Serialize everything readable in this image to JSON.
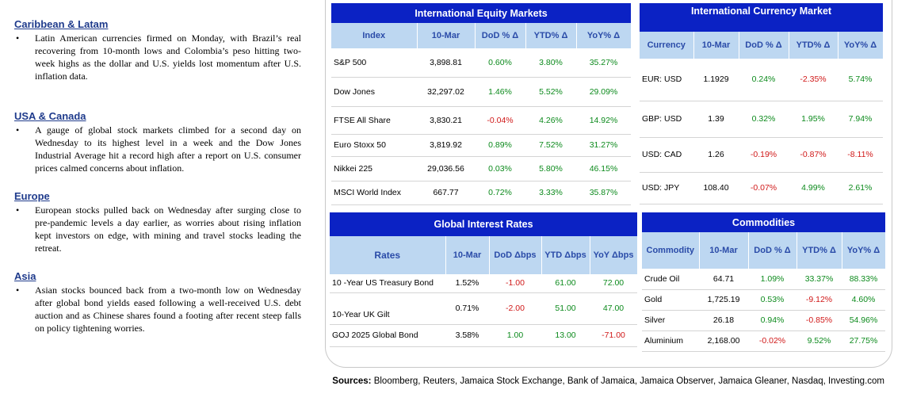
{
  "news": [
    {
      "title": "Caribbean & Latam",
      "text": "Latin American currencies firmed on Monday, with Brazil’s real recovering from 10-month lows and Colombia’s peso hitting two-week highs as the dollar and U.S. yields lost momentum after U.S. inflation data."
    },
    {
      "title": "USA & Canada",
      "text": "A gauge of global stock markets climbed for a second day on Wednesday to its highest level in a week and the Dow Jones Industrial Average hit a record high after a report on U.S. consumer prices calmed concerns about inflation."
    },
    {
      "title": "Europe",
      "text": "European stocks pulled back on Wednesday after surging close to pre-pandemic levels a day earlier, as worries about rising inflation kept investors on edge, with mining and travel stocks leading the retreat."
    },
    {
      "title": "Asia",
      "text": "Asian stocks bounced back from a two-month low on Wednesday after global bond yields eased following a well-received U.S. debt auction and as Chinese shares found a footing after recent steep falls on policy tightening worries."
    }
  ],
  "bullet": "•",
  "equity": {
    "title": "International Equity Markets",
    "headers": [
      "Index",
      "10-Mar",
      "DoD % Δ",
      "YTD% Δ",
      "YoY% Δ"
    ],
    "rows": [
      {
        "name": "S&P 500",
        "value": "3,898.81",
        "dod": "0.60%",
        "ytd": "3.80%",
        "yoy": "35.27%"
      },
      {
        "name": "Dow Jones",
        "value": "32,297.02",
        "dod": "1.46%",
        "ytd": "5.52%",
        "yoy": "29.09%"
      },
      {
        "name": "FTSE All Share",
        "value": "3,830.21",
        "dod": "-0.04%",
        "ytd": "4.26%",
        "yoy": "14.92%"
      },
      {
        "name": "Euro Stoxx 50",
        "value": "3,819.92",
        "dod": "0.89%",
        "ytd": "7.52%",
        "yoy": "31.27%"
      },
      {
        "name": "Nikkei 225",
        "value": "29,036.56",
        "dod": "0.03%",
        "ytd": "5.80%",
        "yoy": "46.15%"
      },
      {
        "name": "MSCI World Index",
        "value": "667.77",
        "dod": "0.72%",
        "ytd": "3.33%",
        "yoy": "35.87%"
      }
    ]
  },
  "currency": {
    "title": "International Currency Market",
    "headers": [
      "Currency",
      "10-Mar",
      "DoD % Δ",
      "YTD% Δ",
      "YoY% Δ"
    ],
    "rows": [
      {
        "name": "EUR: USD",
        "value": "1.1929",
        "dod": "0.24%",
        "ytd": "-2.35%",
        "yoy": "5.74%"
      },
      {
        "name": "GBP: USD",
        "value": "1.39",
        "dod": "0.32%",
        "ytd": "1.95%",
        "yoy": "7.94%"
      },
      {
        "name": "USD: CAD",
        "value": "1.26",
        "dod": "-0.19%",
        "ytd": "-0.87%",
        "yoy": "-8.11%"
      },
      {
        "name": "USD: JPY",
        "value": "108.40",
        "dod": "-0.07%",
        "ytd": "4.99%",
        "yoy": "2.61%"
      }
    ]
  },
  "rates": {
    "title": "Global Interest Rates",
    "headers": [
      "Rates",
      "10-Mar",
      "DoD Δbps",
      "YTD Δbps",
      "YoY Δbps"
    ],
    "rows": [
      {
        "name": "10 -Year US Treasury Bond",
        "value": "1.52%",
        "dod": "-1.00",
        "ytd": "61.00",
        "yoy": "72.00"
      },
      {
        "name": "10-Year UK Gilt",
        "value": "0.71%",
        "dod": "-2.00",
        "ytd": "51.00",
        "yoy": "47.00"
      },
      {
        "name": "GOJ 2025 Global Bond",
        "value": "3.58%",
        "dod": "1.00",
        "ytd": "13.00",
        "yoy": "-71.00"
      }
    ]
  },
  "commodities": {
    "title": "Commodities",
    "headers": [
      "Commodity",
      "10-Mar",
      "DoD % Δ",
      "YTD% Δ",
      "YoY% Δ"
    ],
    "rows": [
      {
        "name": "Crude Oil",
        "value": "64.71",
        "dod": "1.09%",
        "ytd": "33.37%",
        "yoy": "88.33%"
      },
      {
        "name": "Gold",
        "value": "1,725.19",
        "dod": "0.53%",
        "ytd": "-9.12%",
        "yoy": "4.60%"
      },
      {
        "name": "Silver",
        "value": "26.18",
        "dod": "0.94%",
        "ytd": "-0.85%",
        "yoy": "54.96%"
      },
      {
        "name": "Aluminium",
        "value": "2,168.00",
        "dod": "-0.02%",
        "ytd": "9.52%",
        "yoy": "27.75%"
      }
    ]
  },
  "sources": {
    "label": "Sources:",
    "text": " Bloomberg, Reuters, Jamaica Stock Exchange, Bank of Jamaica, Jamaica Observer, Jamaica Gleaner, Nasdaq, Investing.com"
  },
  "colors": {
    "header_blue": "#0b22c4",
    "subheader_blue": "#bdd7f1",
    "positive": "#0c8a1c",
    "negative": "#d01818"
  }
}
